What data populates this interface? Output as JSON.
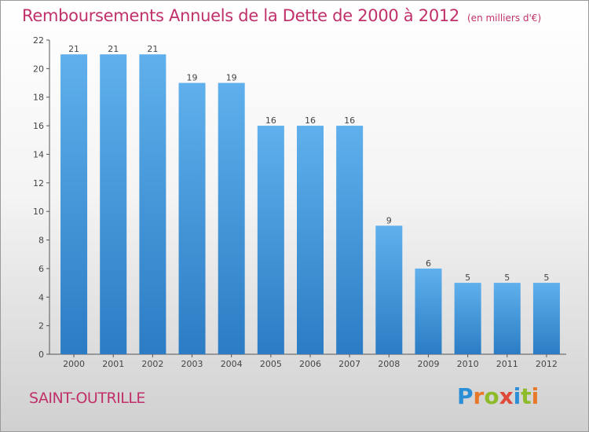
{
  "chart_data": {
    "type": "bar",
    "title": "Remboursements Annuels de la Dette de 2000 à 2012",
    "unit_note": "(en milliers d'€)",
    "categories": [
      "2000",
      "2001",
      "2002",
      "2003",
      "2004",
      "2005",
      "2006",
      "2007",
      "2008",
      "2009",
      "2010",
      "2011",
      "2012"
    ],
    "values": [
      21,
      21,
      21,
      19,
      19,
      16,
      16,
      16,
      9,
      6,
      5,
      5,
      5
    ],
    "ylim": [
      0,
      22
    ],
    "yticks": [
      0,
      2,
      4,
      6,
      8,
      10,
      12,
      14,
      16,
      18,
      20,
      22
    ],
    "grid": false,
    "bar_color": "#4a9fe0"
  },
  "commune": "SAINT-OUTRILLE",
  "logo": {
    "letters": [
      "P",
      "r",
      "o",
      "x",
      "i",
      "t",
      "i"
    ],
    "colors": [
      "#2a8fd6",
      "#e8792a",
      "#8dbb2a",
      "#e04a3a",
      "#2a8fd6",
      "#8dbb2a",
      "#e8792a"
    ]
  },
  "colors": {
    "accent": "#c0306a"
  }
}
